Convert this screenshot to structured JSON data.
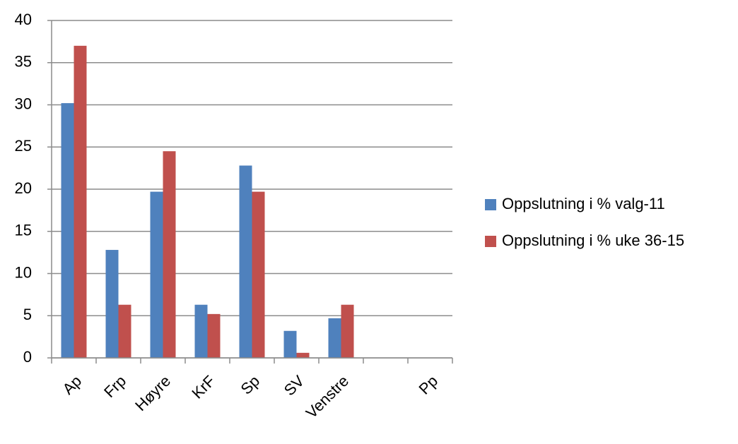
{
  "chart_data": {
    "type": "bar",
    "categories": [
      "Ap",
      "Frp",
      "Høyre",
      "KrF",
      "Sp",
      "SV",
      "Venstre",
      null,
      "Pp"
    ],
    "series": [
      {
        "name": "Oppslutning i % valg-11",
        "color": "#4f81bd",
        "values": [
          30.2,
          12.8,
          19.7,
          6.3,
          22.8,
          3.2,
          4.7,
          null,
          null
        ]
      },
      {
        "name": "Oppslutning i % uke 36-15",
        "color": "#c0504d",
        "values": [
          37,
          6.3,
          24.5,
          5.2,
          19.7,
          0.6,
          6.3,
          null,
          null
        ]
      }
    ],
    "ylim": [
      0,
      40
    ],
    "yticks": [
      0,
      5,
      10,
      15,
      20,
      25,
      30,
      35,
      40
    ],
    "grid": true,
    "legend": "right"
  }
}
